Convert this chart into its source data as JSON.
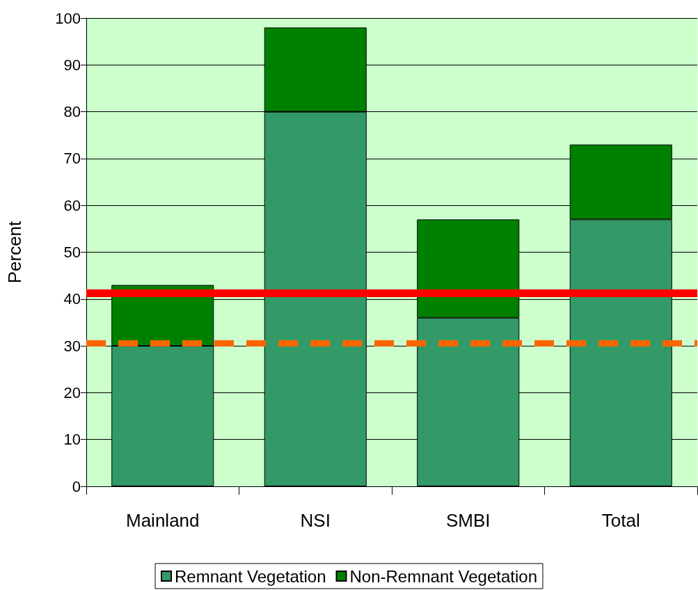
{
  "chart_data": {
    "type": "bar",
    "ylabel": "Percent",
    "categories": [
      "Mainland",
      "NSI",
      "SMBI",
      "Total"
    ],
    "stacked": true,
    "series": [
      {
        "name": "Remnant Vegetation",
        "color": "#339966",
        "values": [
          30,
          80,
          36,
          57
        ]
      },
      {
        "name": "Non-Remnant Vegetation",
        "color": "#008000",
        "values": [
          13,
          18,
          21,
          16
        ]
      }
    ],
    "ylim": [
      0,
      100
    ],
    "yticks": [
      0,
      10,
      20,
      30,
      40,
      50,
      60,
      70,
      80,
      90,
      100
    ],
    "grid": "y",
    "legend": "bottom",
    "ref_lines": [
      {
        "axis": "y",
        "value": 41.3,
        "color": "#ff0000",
        "line_style": "solid"
      },
      {
        "axis": "y",
        "value": 30.6,
        "color": "#ff6600",
        "line_style": "dashed"
      }
    ]
  }
}
